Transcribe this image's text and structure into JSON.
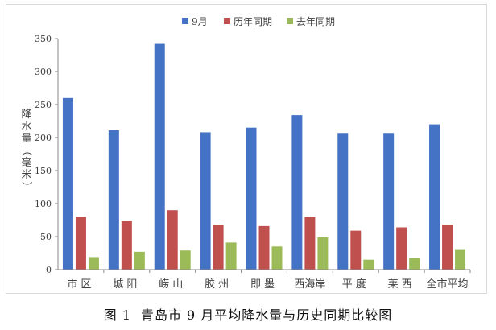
{
  "figure": {
    "label": "图 1",
    "caption": "青岛市 9 月平均降水量与历史同期比较图"
  },
  "chart_data": {
    "type": "bar",
    "categories": [
      "市区",
      "城阳",
      "崂山",
      "胶州",
      "即墨",
      "西海岸",
      "平度",
      "莱西",
      "全市平均"
    ],
    "series": [
      {
        "name": "9月",
        "color": "#4472c4",
        "values": [
          260,
          211,
          342,
          208,
          215,
          234,
          207,
          207,
          220
        ]
      },
      {
        "name": "历年同期",
        "color": "#c0504d",
        "values": [
          80,
          74,
          90,
          68,
          66,
          80,
          59,
          64,
          68
        ]
      },
      {
        "name": "去年同期",
        "color": "#9bbb59",
        "values": [
          19,
          27,
          29,
          41,
          35,
          49,
          15,
          18,
          31
        ]
      }
    ],
    "ylabel": "降水量（毫米）",
    "ylim": [
      0,
      350
    ],
    "yticks": [
      0,
      50,
      100,
      150,
      200,
      250,
      300,
      350
    ],
    "grid": false,
    "legend": "top-center"
  }
}
